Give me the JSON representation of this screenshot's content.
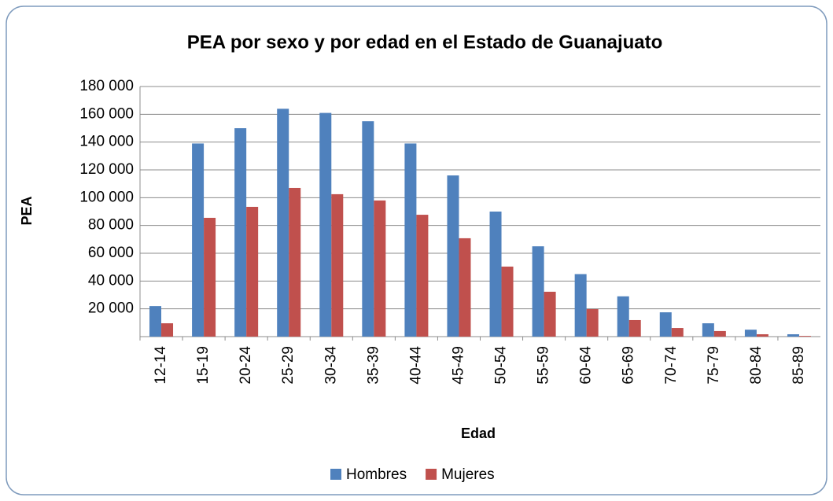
{
  "chart_data": {
    "type": "bar",
    "title": "PEA por sexo y por edad en el Estado de Guanajuato",
    "x_label": "Edad",
    "y_label": "PEA",
    "categories": [
      "12-14",
      "15-19",
      "20-24",
      "25-29",
      "30-34",
      "35-39",
      "40-44",
      "45-49",
      "50-54",
      "55-59",
      "60-64",
      "65-69",
      "70-74",
      "75-79",
      "80-84",
      "85-89"
    ],
    "series": [
      {
        "name": "Hombres",
        "color": "#4f81bd",
        "values": [
          22000,
          139000,
          150000,
          164000,
          161000,
          155000,
          139000,
          116000,
          90000,
          65000,
          45000,
          29000,
          17500,
          9600,
          5000,
          1700
        ]
      },
      {
        "name": "Mujeres",
        "color": "#c0504d",
        "values": [
          9600,
          85500,
          93400,
          107000,
          102500,
          98000,
          87700,
          70800,
          50400,
          32300,
          19800,
          11900,
          6200,
          4000,
          1700,
          500
        ]
      }
    ],
    "ylim": [
      0,
      180000
    ],
    "yticks": [
      {
        "value": 20000,
        "label": "20 000"
      },
      {
        "value": 40000,
        "label": "40 000"
      },
      {
        "value": 60000,
        "label": "60 000"
      },
      {
        "value": 80000,
        "label": "80 000"
      },
      {
        "value": 100000,
        "label": "100 000"
      },
      {
        "value": 120000,
        "label": "120 000"
      },
      {
        "value": 140000,
        "label": "140 000"
      },
      {
        "value": 160000,
        "label": "160 000"
      },
      {
        "value": 180000,
        "label": "180 000"
      }
    ],
    "grid": true,
    "legend": "bottom"
  }
}
